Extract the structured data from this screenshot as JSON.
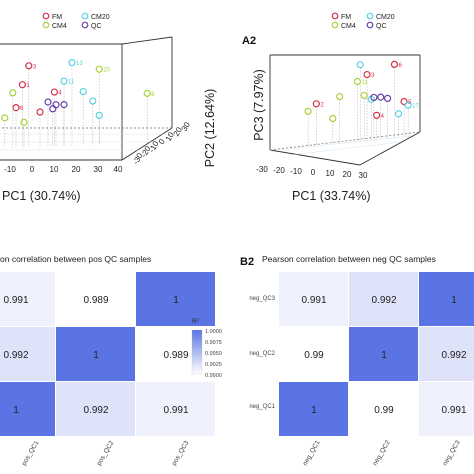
{
  "colors": {
    "fm": "#d6304a",
    "cm20": "#59d2e3",
    "cm4": "#a9d33a",
    "qc": "#6a3fa8",
    "heat_low": "#ffffff",
    "heat_high": "#5a74e3",
    "box": "#333333",
    "drop": "#aaaaaa"
  },
  "panels": {
    "a2_label": "A2",
    "b2_label": "B2"
  },
  "chart_data": [
    {
      "type": "scatter",
      "panel": "A1",
      "projection": "3d",
      "legend": [
        {
          "key": "fm",
          "label": "FM"
        },
        {
          "key": "cm20",
          "label": "CM20"
        },
        {
          "key": "cm4",
          "label": "CM4"
        },
        {
          "key": "qc",
          "label": "QC"
        }
      ],
      "xlabel": "PC1 (30.74%)",
      "ylabel": "PC2 (12.64%)",
      "x_ticks": [
        "-10",
        "0",
        "10",
        "20",
        "30",
        "40"
      ],
      "y_ticks": [
        "-30",
        "-20",
        "-10",
        "0",
        "10",
        "20",
        "30"
      ],
      "points": [
        {
          "group": "fm",
          "label": "3",
          "u": 0.18,
          "h": 0.82
        },
        {
          "group": "fm",
          "label": "1",
          "u": 0.14,
          "h": 0.63
        },
        {
          "group": "fm",
          "label": "4",
          "u": 0.34,
          "h": 0.55
        },
        {
          "group": "fm",
          "label": "6",
          "u": 0.1,
          "h": 0.4
        },
        {
          "group": "fm",
          "label": "",
          "u": 0.25,
          "h": 0.35
        },
        {
          "group": "cm20",
          "label": "13",
          "u": 0.45,
          "h": 0.85
        },
        {
          "group": "cm20",
          "label": "11",
          "u": 0.4,
          "h": 0.66
        },
        {
          "group": "cm20",
          "label": "",
          "u": 0.52,
          "h": 0.55
        },
        {
          "group": "cm20",
          "label": "",
          "u": 0.58,
          "h": 0.45
        },
        {
          "group": "cm20",
          "label": "",
          "u": 0.62,
          "h": 0.3
        },
        {
          "group": "cm4",
          "label": "10",
          "u": 0.62,
          "h": 0.78
        },
        {
          "group": "cm4",
          "label": "8",
          "u": 0.92,
          "h": 0.52
        },
        {
          "group": "cm4",
          "label": "",
          "u": 0.08,
          "h": 0.55
        },
        {
          "group": "cm4",
          "label": "",
          "u": 0.03,
          "h": 0.3
        },
        {
          "group": "cm4",
          "label": "",
          "u": 0.15,
          "h": 0.25
        },
        {
          "group": "qc",
          "label": "",
          "u": 0.3,
          "h": 0.45
        },
        {
          "group": "qc",
          "label": "",
          "u": 0.35,
          "h": 0.42
        },
        {
          "group": "qc",
          "label": "",
          "u": 0.4,
          "h": 0.42
        },
        {
          "group": "qc",
          "label": "",
          "u": 0.33,
          "h": 0.38
        }
      ]
    },
    {
      "type": "scatter",
      "panel": "A2",
      "projection": "3d",
      "legend": [
        {
          "key": "fm",
          "label": "FM"
        },
        {
          "key": "cm20",
          "label": "CM20"
        },
        {
          "key": "cm4",
          "label": "CM4"
        },
        {
          "key": "qc",
          "label": "QC"
        }
      ],
      "xlabel": "PC1 (33.74%)",
      "zlabel": "PC3 (7.97%)",
      "x_ticks": [
        "-30",
        "-20",
        "-10",
        "0",
        "10",
        "20",
        "30"
      ],
      "points": [
        {
          "group": "fm",
          "label": "6",
          "u": 0.85,
          "h": 0.92
        },
        {
          "group": "fm",
          "label": "3",
          "u": 0.65,
          "h": 0.8
        },
        {
          "group": "fm",
          "label": "2",
          "u": 0.28,
          "h": 0.48
        },
        {
          "group": "fm",
          "label": "5",
          "u": 0.92,
          "h": 0.45
        },
        {
          "group": "fm",
          "label": "4",
          "u": 0.72,
          "h": 0.3
        },
        {
          "group": "cm20",
          "label": "",
          "u": 0.6,
          "h": 0.92
        },
        {
          "group": "cm20",
          "label": "",
          "u": 0.68,
          "h": 0.5
        },
        {
          "group": "cm20",
          "label": "17",
          "u": 0.95,
          "h": 0.4
        },
        {
          "group": "cm20",
          "label": "",
          "u": 0.88,
          "h": 0.3
        },
        {
          "group": "cm4",
          "label": "11",
          "u": 0.58,
          "h": 0.72
        },
        {
          "group": "cm4",
          "label": "",
          "u": 0.45,
          "h": 0.55
        },
        {
          "group": "cm4",
          "label": "",
          "u": 0.63,
          "h": 0.55
        },
        {
          "group": "cm4",
          "label": "",
          "u": 0.22,
          "h": 0.4
        },
        {
          "group": "cm4",
          "label": "",
          "u": 0.4,
          "h": 0.3
        },
        {
          "group": "qc",
          "label": "",
          "u": 0.7,
          "h": 0.52
        },
        {
          "group": "qc",
          "label": "",
          "u": 0.75,
          "h": 0.52
        },
        {
          "group": "qc",
          "label": "",
          "u": 0.8,
          "h": 0.5
        }
      ]
    },
    {
      "type": "heatmap",
      "panel": "B1",
      "title": "on correlation between pos QC samples",
      "x_tick_labels": [
        "pos_QC1",
        "pos_QC2",
        "pos_QC3"
      ],
      "y_tick_labels": [],
      "rows": [
        [
          0.991,
          0.989,
          1
        ],
        [
          0.992,
          1,
          0.989
        ],
        [
          1,
          0.992,
          0.991
        ]
      ],
      "cell_labels": [
        [
          "0.991",
          "0.989",
          "1"
        ],
        [
          "0.992",
          "1",
          "0.989"
        ],
        [
          "1",
          "0.992",
          "0.991"
        ]
      ],
      "legend": {
        "title": "R²",
        "min": 0.99,
        "max": 1.0,
        "ticks": [
          "1.0000",
          "0.9975",
          "0.9950",
          "0.9925",
          "0.9900"
        ]
      }
    },
    {
      "type": "heatmap",
      "panel": "B2",
      "title": "Pearson correlation between neg QC samples",
      "x_tick_labels": [
        "neg_QC1",
        "neg_QC2",
        "neg_QC3"
      ],
      "y_tick_labels": [
        "neg_QC3",
        "neg_QC2",
        "neg_QC1"
      ],
      "rows": [
        [
          0.991,
          0.992,
          1
        ],
        [
          0.99,
          1,
          0.992
        ],
        [
          1,
          0.99,
          0.991
        ]
      ],
      "cell_labels": [
        [
          "0.991",
          "0.992",
          "1"
        ],
        [
          "0.99",
          "1",
          "0.992"
        ],
        [
          "1",
          "0.99",
          "0.991"
        ]
      ]
    }
  ]
}
